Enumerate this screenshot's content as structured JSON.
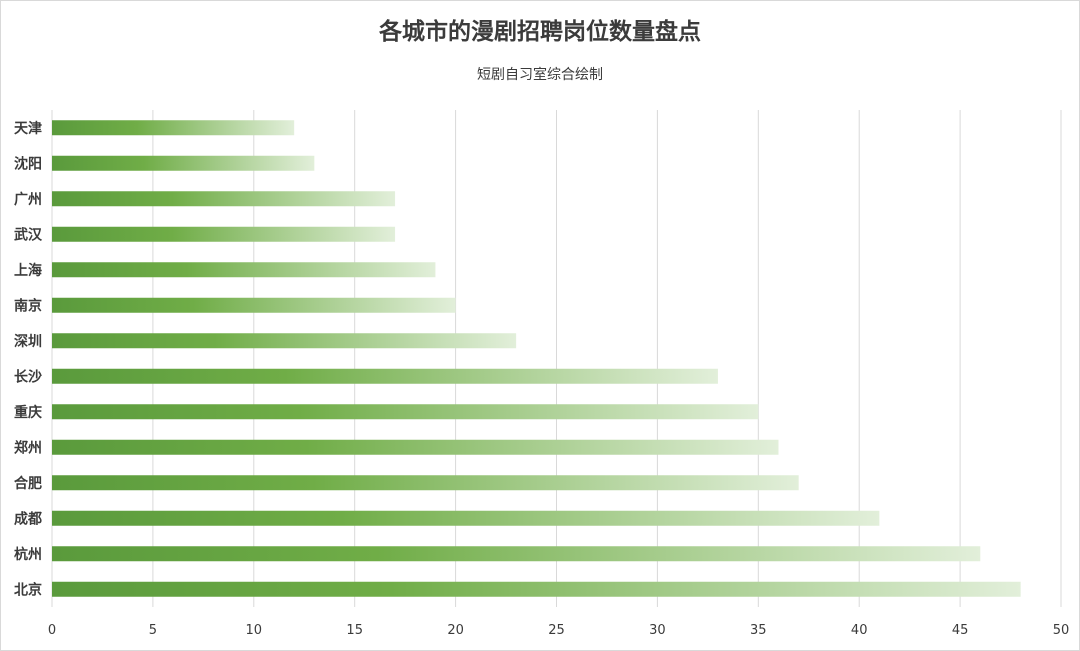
{
  "chart_data": {
    "type": "bar",
    "orientation": "horizontal",
    "title": "各城市的漫剧招聘岗位数量盘点",
    "subtitle": "短剧自习室综合绘制",
    "categories": [
      "天津",
      "沈阳",
      "广州",
      "武汉",
      "上海",
      "南京",
      "深圳",
      "长沙",
      "重庆",
      "郑州",
      "合肥",
      "成都",
      "杭州",
      "北京"
    ],
    "values": [
      12,
      13,
      17,
      17,
      19,
      20,
      23,
      33,
      35,
      36,
      37,
      41,
      46,
      48
    ],
    "xlim": [
      0,
      50
    ],
    "xticks": [
      0,
      5,
      10,
      15,
      20,
      25,
      30,
      35,
      40,
      45,
      50
    ],
    "grid": "vertical",
    "legend": "none",
    "colors": {
      "bar_start": "#5a9a3c",
      "bar_mid": "#70ad47",
      "bar_end": "#e2efda",
      "grid": "#d9d9d9",
      "text": "#3b3b3b"
    }
  }
}
